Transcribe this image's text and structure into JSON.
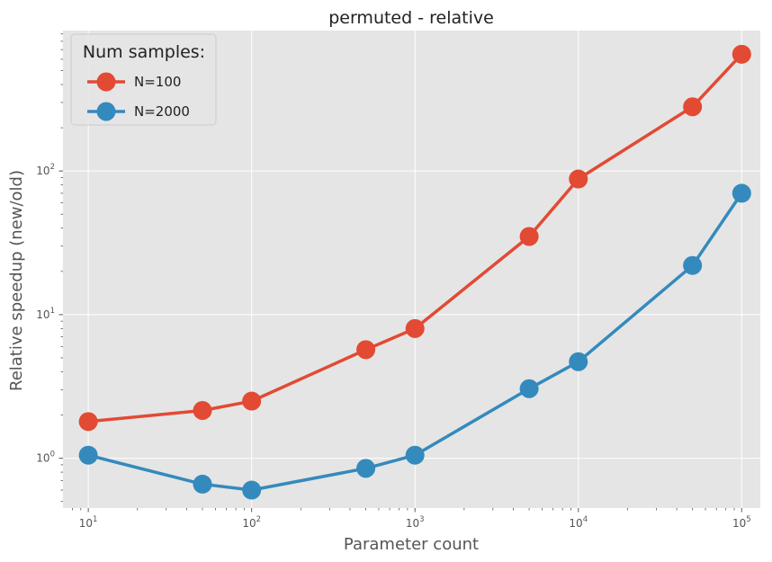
{
  "chart_data": {
    "type": "line",
    "title": "permuted - relative",
    "xlabel": "Parameter count",
    "ylabel": "Relative speedup (new/old)",
    "xscale": "log",
    "yscale": "log",
    "xlim": [
      7,
      130000
    ],
    "ylim": [
      0.45,
      950
    ],
    "grid": true,
    "x": [
      10,
      50,
      100,
      500,
      1000,
      5000,
      10000,
      50000,
      100000
    ],
    "series": [
      {
        "name": "N=100",
        "color": "#E24A33",
        "values": [
          1.8,
          2.15,
          2.5,
          5.7,
          8.0,
          35,
          88,
          280,
          650
        ]
      },
      {
        "name": "N=2000",
        "color": "#348ABD",
        "values": [
          1.05,
          0.66,
          0.6,
          0.85,
          1.05,
          3.05,
          4.7,
          22,
          70
        ]
      }
    ],
    "legend": {
      "title": "Num samples:",
      "placement": "top-left"
    },
    "x_tick_labels": [
      {
        "value": 10,
        "base": "10",
        "exp": "1"
      },
      {
        "value": 100,
        "base": "10",
        "exp": "2"
      },
      {
        "value": 1000,
        "base": "10",
        "exp": "3"
      },
      {
        "value": 10000,
        "base": "10",
        "exp": "4"
      },
      {
        "value": 100000,
        "base": "10",
        "exp": "5"
      }
    ],
    "y_tick_labels": [
      {
        "value": 1,
        "base": "10",
        "exp": "0"
      },
      {
        "value": 10,
        "base": "10",
        "exp": "1"
      },
      {
        "value": 100,
        "base": "10",
        "exp": "2"
      }
    ],
    "colors": {
      "plot_bg": "#E5E5E5",
      "grid": "#FFFFFF",
      "tick": "#555555"
    }
  }
}
